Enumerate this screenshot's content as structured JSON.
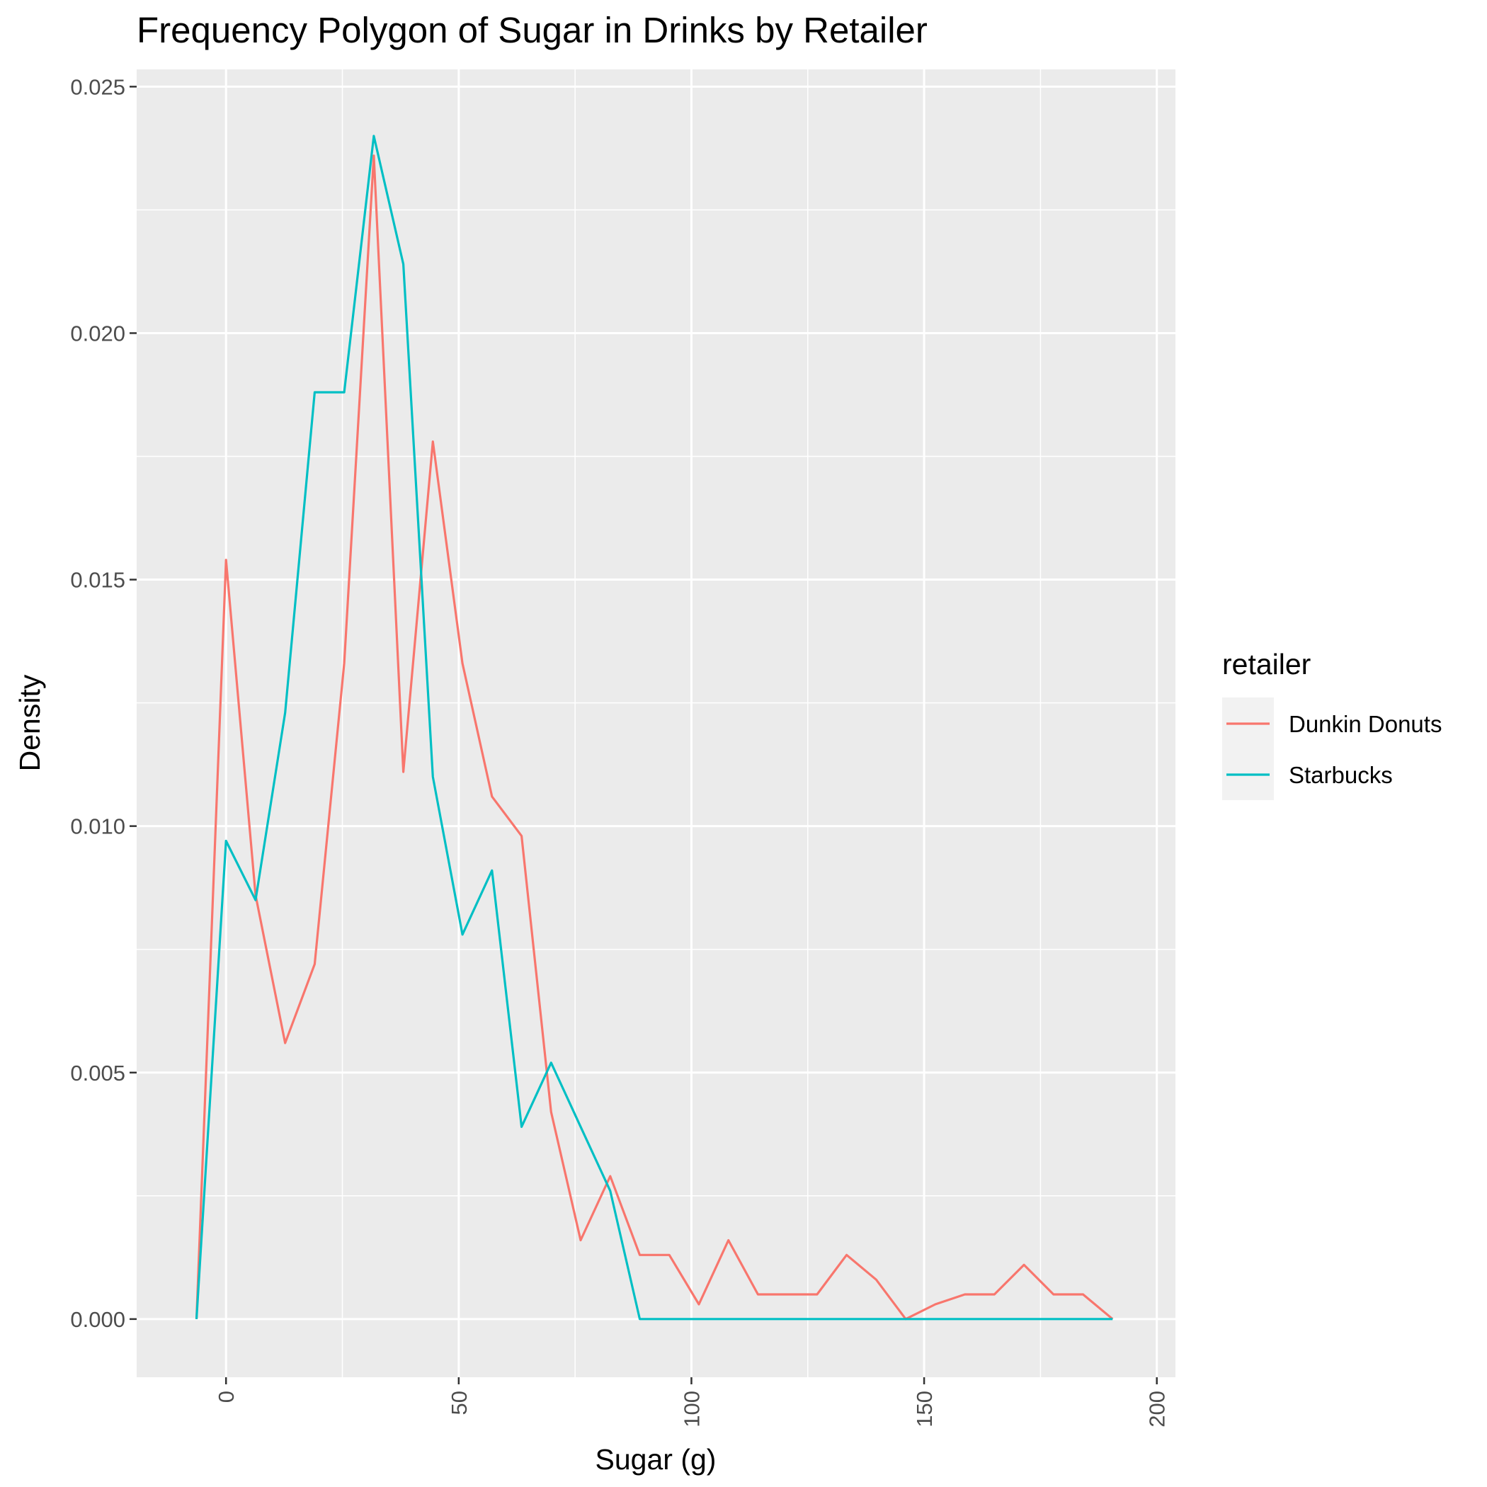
{
  "chart_data": {
    "type": "line",
    "title": "Frequency Polygon of Sugar in Drinks by Retailer",
    "xlabel": "Sugar (g)",
    "ylabel": "Density",
    "xlim": [
      -19.2,
      204.0
    ],
    "ylim": [
      -0.00118,
      0.02535
    ],
    "x_ticks": [
      0,
      50,
      100,
      150,
      200
    ],
    "x_tick_labels": [
      "0",
      "50",
      "100",
      "150",
      "200"
    ],
    "y_ticks": [
      0,
      0.005,
      0.01,
      0.015,
      0.02,
      0.025
    ],
    "y_tick_labels": [
      "0.000",
      "0.005",
      "0.010",
      "0.015",
      "0.020",
      "0.025"
    ],
    "grid": true,
    "legend": {
      "title": "retailer",
      "position": "right"
    },
    "series": [
      {
        "name": "Dunkin Donuts",
        "color": "#F8766D",
        "x": [
          -6.35,
          0,
          6.35,
          12.7,
          19.05,
          25.4,
          31.75,
          38.1,
          44.45,
          50.8,
          57.15,
          63.5,
          69.85,
          76.2,
          82.55,
          88.9,
          95.25,
          101.6,
          107.95,
          114.3,
          120.65,
          127.0,
          133.35,
          139.7,
          146.05,
          152.4,
          158.75,
          165.1,
          171.45,
          177.8,
          184.15,
          190.5
        ],
        "y": [
          0,
          0.0154,
          0.0086,
          0.0056,
          0.0072,
          0.0133,
          0.0236,
          0.0111,
          0.0178,
          0.0133,
          0.0106,
          0.0098,
          0.0042,
          0.0016,
          0.0029,
          0.0013,
          0.0013,
          0.0003,
          0.0016,
          0.0005,
          0.0005,
          0.0005,
          0.0013,
          0.0008,
          0,
          0.0003,
          0.0005,
          0.0005,
          0.0011,
          0.0005,
          0.0005,
          0
        ]
      },
      {
        "name": "Starbucks",
        "color": "#00BFC4",
        "x": [
          -6.35,
          0,
          6.35,
          12.7,
          19.05,
          25.4,
          31.75,
          38.1,
          44.45,
          50.8,
          57.15,
          63.5,
          69.85,
          76.2,
          82.55,
          88.9,
          95.25,
          101.6,
          107.95,
          114.3,
          120.65,
          127.0,
          133.35,
          139.7,
          146.05,
          152.4,
          158.75,
          165.1,
          171.45,
          177.8,
          184.15,
          190.5
        ],
        "y": [
          0,
          0.0097,
          0.0085,
          0.0123,
          0.0188,
          0.0188,
          0.024,
          0.0214,
          0.011,
          0.0078,
          0.0091,
          0.0039,
          0.0052,
          0.0039,
          0.0026,
          0,
          0,
          0,
          0,
          0,
          0,
          0,
          0,
          0,
          0,
          0,
          0,
          0,
          0,
          0,
          0,
          0
        ]
      }
    ]
  }
}
